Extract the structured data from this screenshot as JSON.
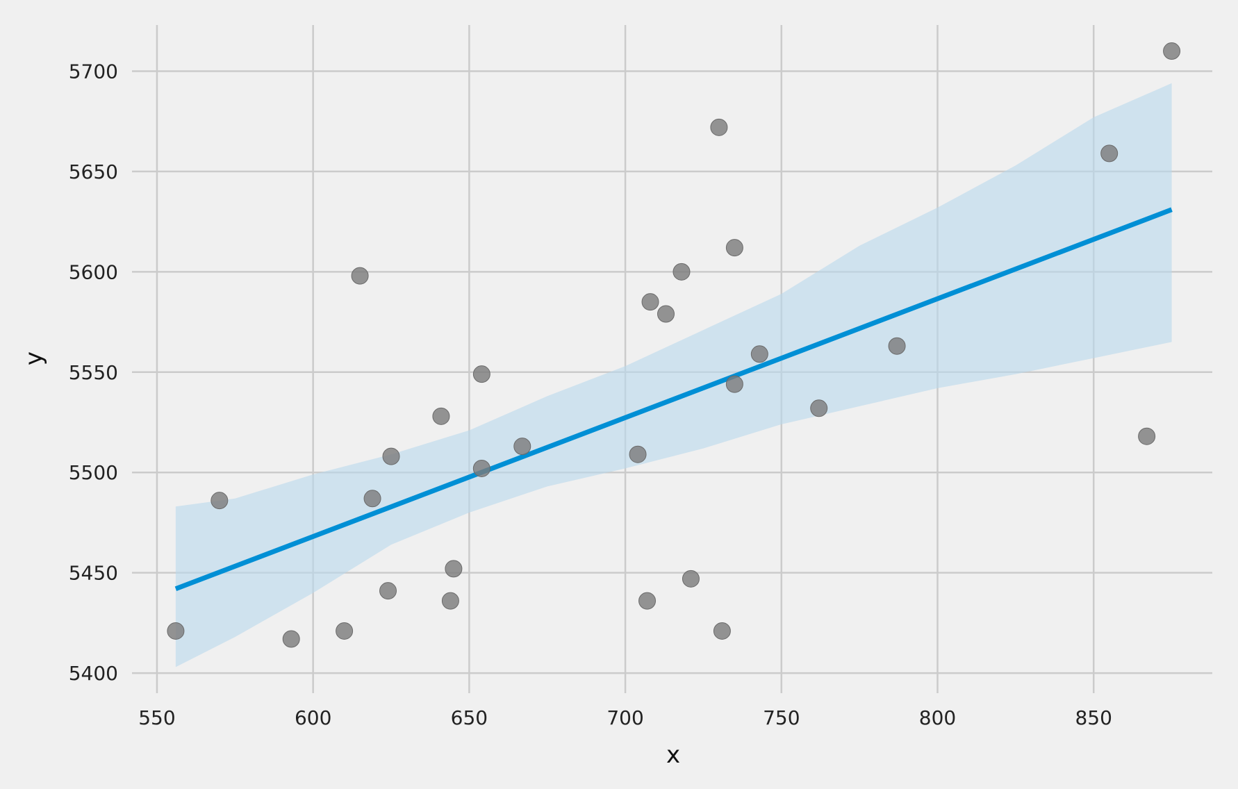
{
  "chart_data": {
    "type": "scatter",
    "title": "",
    "xlabel": "x",
    "ylabel": "y",
    "xlim": [
      542,
      888
    ],
    "ylim": [
      5390,
      5723
    ],
    "xticks": [
      550,
      600,
      650,
      700,
      750,
      800,
      850
    ],
    "yticks": [
      5400,
      5450,
      5500,
      5550,
      5600,
      5650,
      5700
    ],
    "grid": true,
    "colors": {
      "background": "#f0f0f0",
      "grid": "#cbcbcb",
      "points": "#7a7a7a",
      "regression_line": "#008fd5",
      "confidence_band": "#b9d9ec"
    },
    "points": [
      {
        "x": 556,
        "y": 5421
      },
      {
        "x": 570,
        "y": 5486
      },
      {
        "x": 593,
        "y": 5417
      },
      {
        "x": 610,
        "y": 5421
      },
      {
        "x": 615,
        "y": 5598
      },
      {
        "x": 619,
        "y": 5487
      },
      {
        "x": 624,
        "y": 5441
      },
      {
        "x": 625,
        "y": 5508
      },
      {
        "x": 641,
        "y": 5528
      },
      {
        "x": 644,
        "y": 5436
      },
      {
        "x": 645,
        "y": 5452
      },
      {
        "x": 654,
        "y": 5549
      },
      {
        "x": 654,
        "y": 5502
      },
      {
        "x": 667,
        "y": 5513
      },
      {
        "x": 704,
        "y": 5509
      },
      {
        "x": 707,
        "y": 5436
      },
      {
        "x": 708,
        "y": 5585
      },
      {
        "x": 713,
        "y": 5579
      },
      {
        "x": 718,
        "y": 5600
      },
      {
        "x": 721,
        "y": 5447
      },
      {
        "x": 730,
        "y": 5672
      },
      {
        "x": 731,
        "y": 5421
      },
      {
        "x": 735,
        "y": 5612
      },
      {
        "x": 735,
        "y": 5544
      },
      {
        "x": 743,
        "y": 5559
      },
      {
        "x": 762,
        "y": 5532
      },
      {
        "x": 787,
        "y": 5563
      },
      {
        "x": 855,
        "y": 5659
      },
      {
        "x": 867,
        "y": 5518
      },
      {
        "x": 875,
        "y": 5710
      }
    ],
    "regression": {
      "x": [
        556,
        875
      ],
      "y": [
        5442,
        5631
      ]
    },
    "confidence_band": {
      "x": [
        556,
        575,
        600,
        625,
        650,
        675,
        700,
        725,
        750,
        775,
        800,
        825,
        850,
        875
      ],
      "lower": [
        5403,
        5418,
        5440,
        5464,
        5480,
        5493,
        5502,
        5512,
        5524,
        5533,
        5542,
        5549,
        5557,
        5565
      ],
      "upper": [
        5483,
        5487,
        5499,
        5509,
        5521,
        5538,
        5553,
        5571,
        5589,
        5613,
        5632,
        5653,
        5677,
        5694
      ]
    }
  }
}
